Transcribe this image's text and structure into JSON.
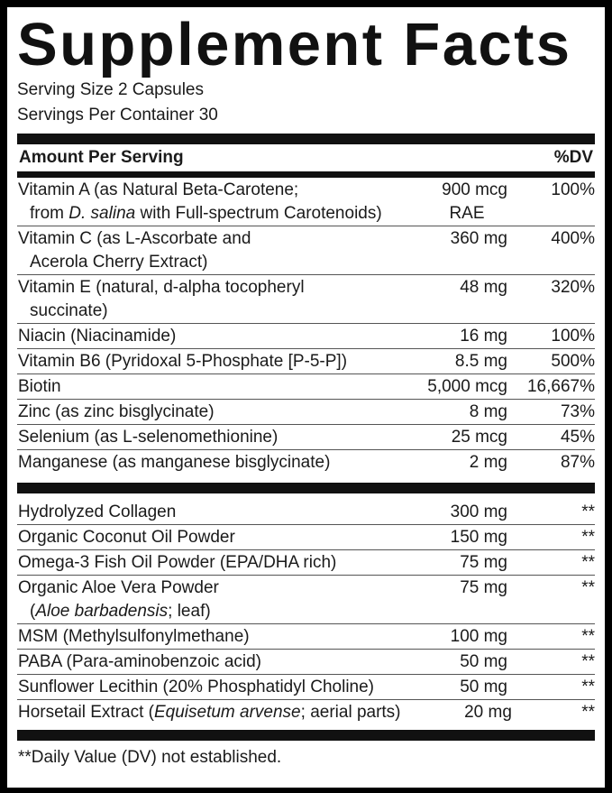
{
  "title": "Supplement Facts",
  "serving_size": "Serving Size 2 Capsules",
  "servings_per_container": "Servings Per Container 30",
  "header": {
    "amount": "Amount Per Serving",
    "dv": "%DV"
  },
  "vitamins": [
    {
      "lines": [
        [
          {
            "t": "Vitamin A (as Natural Beta-Carotene;"
          }
        ],
        [
          {
            "t": "from "
          },
          {
            "t": "D. salina",
            "i": true
          },
          {
            "t": " with Full-spectrum Carotenoids)"
          }
        ]
      ],
      "amount": [
        "900 mcg",
        "RAE"
      ],
      "dv": "100%"
    },
    {
      "lines": [
        [
          {
            "t": "Vitamin C (as  L-Ascorbate and"
          }
        ],
        [
          {
            "t": "Acerola Cherry Extract)"
          }
        ]
      ],
      "amount": [
        "360 mg"
      ],
      "dv": "400%"
    },
    {
      "lines": [
        [
          {
            "t": "Vitamin E (natural, d-alpha tocopheryl"
          }
        ],
        [
          {
            "t": "succinate)"
          }
        ]
      ],
      "amount": [
        "48 mg"
      ],
      "dv": "320%"
    },
    {
      "lines": [
        [
          {
            "t": "Niacin (Niacinamide)"
          }
        ]
      ],
      "amount": [
        "16 mg"
      ],
      "dv": "100%"
    },
    {
      "lines": [
        [
          {
            "t": "Vitamin B6 (Pyridoxal 5-Phosphate [P-5-P])"
          }
        ]
      ],
      "amount": [
        "8.5 mg"
      ],
      "dv": "500%"
    },
    {
      "lines": [
        [
          {
            "t": "Biotin"
          }
        ]
      ],
      "amount": [
        "5,000 mcg"
      ],
      "dv": "16,667%"
    },
    {
      "lines": [
        [
          {
            "t": "Zinc (as zinc bisglycinate)"
          }
        ]
      ],
      "amount": [
        "8 mg"
      ],
      "dv": "73%"
    },
    {
      "lines": [
        [
          {
            "t": "Selenium (as L-selenomethionine)"
          }
        ]
      ],
      "amount": [
        "25 mcg"
      ],
      "dv": "45%"
    },
    {
      "lines": [
        [
          {
            "t": "Manganese (as manganese bisglycinate)"
          }
        ]
      ],
      "amount": [
        "2 mg"
      ],
      "dv": "87%"
    }
  ],
  "others": [
    {
      "lines": [
        [
          {
            "t": "Hydrolyzed Collagen"
          }
        ]
      ],
      "amount": [
        "300 mg"
      ],
      "dv": "**"
    },
    {
      "lines": [
        [
          {
            "t": "Organic Coconut Oil Powder"
          }
        ]
      ],
      "amount": [
        "150 mg"
      ],
      "dv": "**"
    },
    {
      "lines": [
        [
          {
            "t": "Omega-3 Fish Oil Powder (EPA/DHA rich)"
          }
        ]
      ],
      "amount": [
        "75 mg"
      ],
      "dv": "**"
    },
    {
      "lines": [
        [
          {
            "t": "Organic Aloe Vera Powder"
          }
        ],
        [
          {
            "t": "("
          },
          {
            "t": "Aloe barbadensis",
            "i": true
          },
          {
            "t": "; leaf)"
          }
        ]
      ],
      "amount": [
        "75 mg"
      ],
      "dv": "**"
    },
    {
      "lines": [
        [
          {
            "t": "MSM (Methylsulfonylmethane)"
          }
        ]
      ],
      "amount": [
        "100 mg"
      ],
      "dv": "**"
    },
    {
      "lines": [
        [
          {
            "t": "PABA (Para-aminobenzoic acid)"
          }
        ]
      ],
      "amount": [
        "50 mg"
      ],
      "dv": "**"
    },
    {
      "lines": [
        [
          {
            "t": "Sunflower Lecithin (20% Phosphatidyl Choline)"
          }
        ]
      ],
      "amount": [
        "50 mg"
      ],
      "dv": "**"
    },
    {
      "lines": [
        [
          {
            "t": "Horsetail Extract ("
          },
          {
            "t": "Equisetum arvense",
            "i": true
          },
          {
            "t": "; aerial parts)"
          }
        ]
      ],
      "amount": [
        "20 mg"
      ],
      "dv": "**"
    }
  ],
  "footnote": "**Daily Value (DV) not established."
}
